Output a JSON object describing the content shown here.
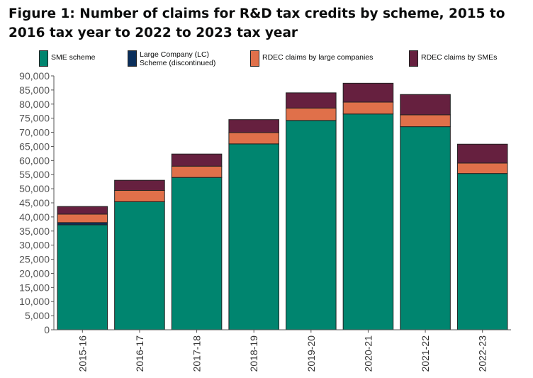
{
  "title": "Figure 1: Number of claims for R&D tax credits by scheme, 2015 to 2016 tax year to 2022 to 2023 tax year",
  "colors": {
    "sme": "#00856f",
    "lc": "#0b2f5b",
    "rdec_large": "#e0704a",
    "rdec_sme": "#66203f",
    "axis": "#555555"
  },
  "legend": [
    {
      "label": "SME scheme",
      "color": "#00856f"
    },
    {
      "label": "Large Company (LC)\nScheme (discontinued)",
      "color": "#0b2f5b"
    },
    {
      "label": "RDEC claims by large companies",
      "color": "#e0704a"
    },
    {
      "label": "RDEC claims by SMEs",
      "color": "#66203f"
    }
  ],
  "chart_data": {
    "type": "bar",
    "stacked": true,
    "title": "Figure 1: Number of claims for R&D tax credits by scheme, 2015 to 2016 tax year to 2022 to 2023 tax year",
    "xlabel": "",
    "ylabel": "",
    "ylim": [
      0,
      90000
    ],
    "yticks": [
      "0",
      "5,000",
      "10,000",
      "15,000",
      "20,000",
      "25,000",
      "30,000",
      "35,000",
      "40,000",
      "45,000",
      "50,000",
      "55,000",
      "60,000",
      "65,000",
      "70,000",
      "75,000",
      "80,000",
      "85,000",
      "90,000"
    ],
    "categories": [
      "2015-16",
      "2016-17",
      "2017-18",
      "2018-19",
      "2019-20",
      "2020-21",
      "2021-22",
      "2022-23"
    ],
    "series": [
      {
        "name": "SME scheme",
        "color": "#00856f",
        "values": [
          37200,
          45400,
          54000,
          65900,
          74200,
          76500,
          72000,
          55400
        ]
      },
      {
        "name": "Large Company (LC) Scheme (discontinued)",
        "color": "#0b2f5b",
        "values": [
          800,
          0,
          0,
          0,
          0,
          0,
          0,
          0
        ]
      },
      {
        "name": "RDEC claims by large companies",
        "color": "#e0704a",
        "values": [
          3000,
          4000,
          4000,
          4000,
          4400,
          4200,
          4200,
          3700
        ]
      },
      {
        "name": "RDEC claims by SMEs",
        "color": "#66203f",
        "values": [
          2700,
          3600,
          4300,
          4600,
          5400,
          6700,
          7200,
          6700
        ]
      }
    ],
    "legend_position": "top",
    "grid": false
  }
}
